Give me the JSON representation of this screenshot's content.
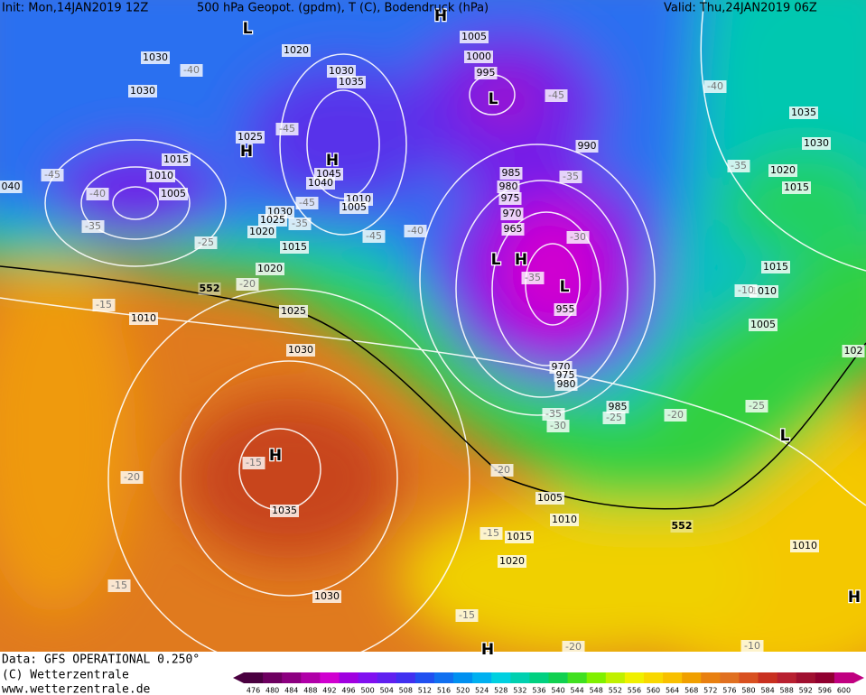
{
  "header": {
    "init": "Init: Mon,14JAN2019 12Z",
    "title": "500 hPa Geopot. (gpdm), T (C), Bodendruck (hPa)",
    "valid": "Valid: Thu,24JAN2019 06Z"
  },
  "footer": {
    "data": "Data: GFS OPERATIONAL 0.250°",
    "copyright": "(C) Wetterzentrale",
    "url": "www.wetterzentrale.de"
  },
  "colorbar": {
    "ticks": [
      476,
      480,
      484,
      488,
      492,
      496,
      500,
      504,
      508,
      512,
      516,
      520,
      524,
      528,
      532,
      536,
      540,
      544,
      548,
      552,
      556,
      560,
      564,
      568,
      572,
      576,
      580,
      584,
      588,
      592,
      596,
      600
    ],
    "colors": [
      "#4a0040",
      "#6d0060",
      "#8c0080",
      "#b000a8",
      "#d000d0",
      "#a000e0",
      "#8010f0",
      "#6020f0",
      "#4030f0",
      "#2050f0",
      "#1070f0",
      "#0090f0",
      "#00b0f0",
      "#00d0e0",
      "#00d0b0",
      "#00d080",
      "#10d050",
      "#40e020",
      "#80f000",
      "#c0f000",
      "#f0f000",
      "#f8d800",
      "#f8c000",
      "#f0a000",
      "#e88010",
      "#e07020",
      "#d85020",
      "#c83020",
      "#b82030",
      "#a01030",
      "#900030",
      "#c00080"
    ]
  },
  "map": {
    "isobar_labels": [
      "1030",
      "1030",
      "1020",
      "1030",
      "1035",
      "1025",
      "1015",
      "1010",
      "1005",
      "1045",
      "1040",
      "1010",
      "1005",
      "1030",
      "1025",
      "1020",
      "1015",
      "1020",
      "1010",
      "1025",
      "1030",
      "1035",
      "1030",
      "1005",
      "1000",
      "995",
      "990",
      "985",
      "980",
      "975",
      "970",
      "965",
      "955",
      "970",
      "975",
      "980",
      "985",
      "1005",
      "1010",
      "1015",
      "1020",
      "1010",
      "1035",
      "1030",
      "1020",
      "1015",
      "1015",
      "1010",
      "1005",
      "102",
      "040"
    ],
    "temperature_labels": [
      "-40",
      "-45",
      "-40",
      "-35",
      "-25",
      "-20",
      "-15",
      "-45",
      "-45",
      "-35",
      "-45",
      "-40",
      "-45",
      "-40",
      "-35",
      "-35",
      "-30",
      "-35",
      "-10",
      "-35",
      "-30",
      "-25",
      "-20",
      "-25",
      "-20",
      "-15",
      "-20",
      "-15",
      "-15",
      "-15",
      "-20",
      "-10"
    ],
    "height_labels": [
      "552",
      "552"
    ],
    "pressure_centers": [
      "L",
      "H",
      "H",
      "L",
      "L",
      "H",
      "L",
      "H",
      "L",
      "H",
      "H",
      "H"
    ]
  }
}
